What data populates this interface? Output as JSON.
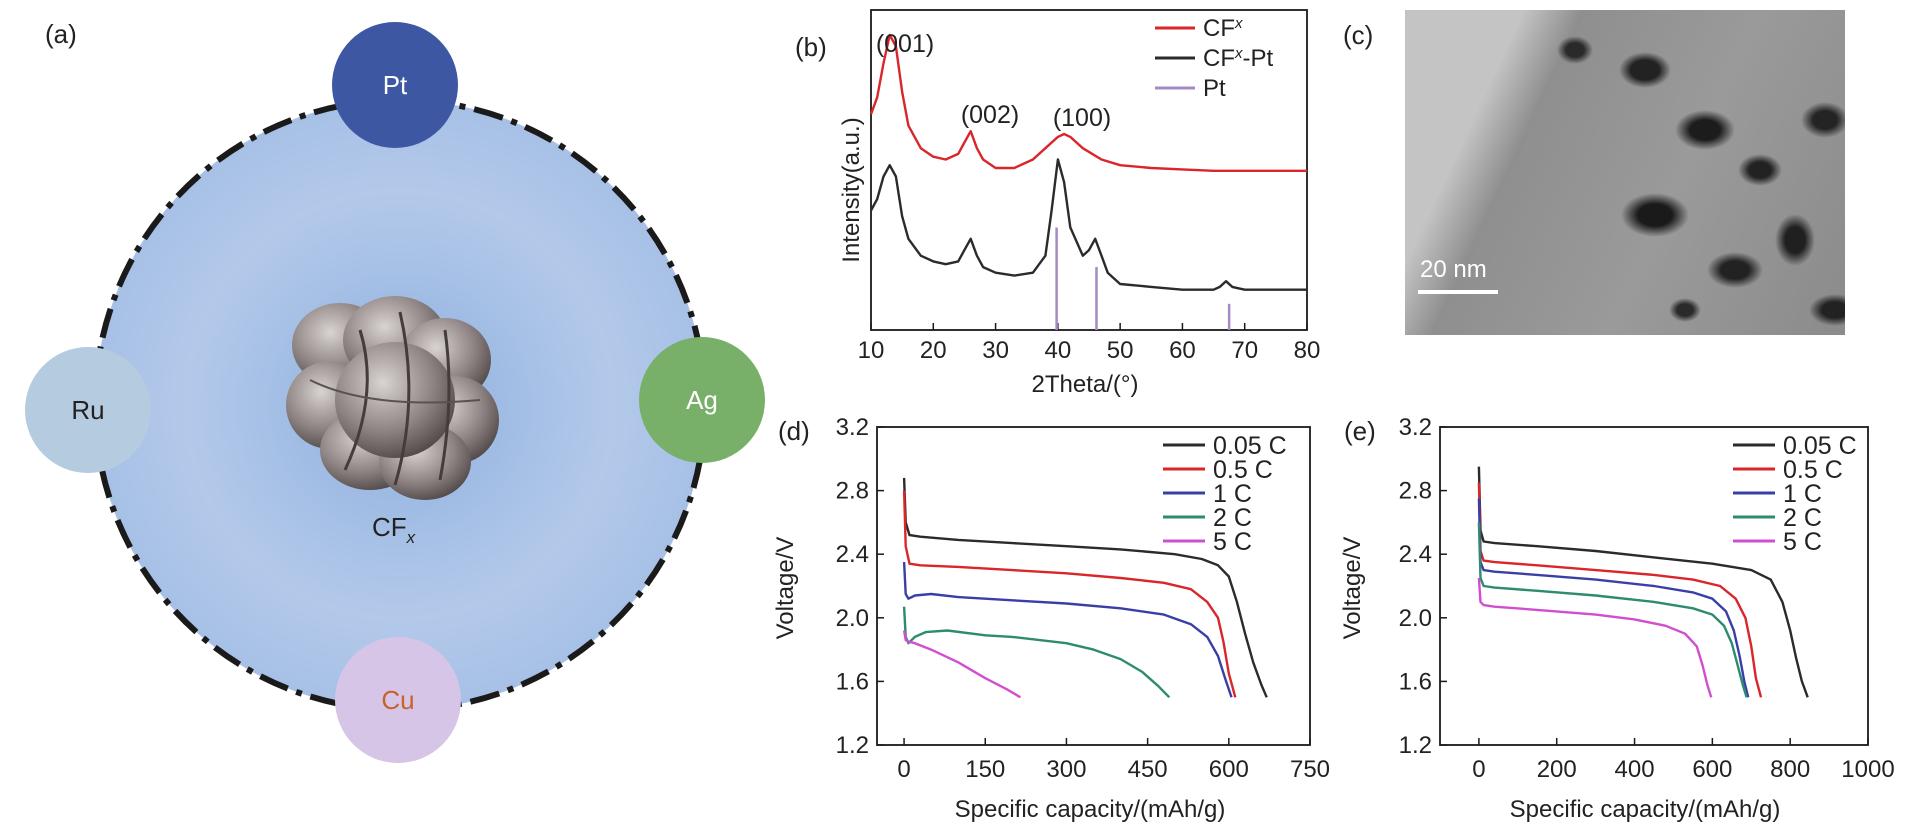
{
  "panel_a": {
    "label": "(a)",
    "center_label": "CF",
    "center_sub": "x",
    "metals": [
      {
        "name": "Pt",
        "fill": "#3d57a3",
        "text_color": "#ffffff"
      },
      {
        "name": "Ag",
        "fill": "#78b06a",
        "text_color": "#ffffff"
      },
      {
        "name": "Cu",
        "fill": "#d6c5e6",
        "text_color": "#c8622b"
      },
      {
        "name": "Ru",
        "fill": "#b5cbe0",
        "text_color": "#222222"
      }
    ],
    "circle_fill": "#a9c2e6"
  },
  "panel_c": {
    "label": "(c)",
    "scale_bar": "20 nm"
  },
  "chart_data": [
    {
      "panel_label": "(b)",
      "type": "line",
      "xlabel": "2Theta/(°)",
      "ylabel": "Intensity(a.u.)",
      "xlim": [
        10,
        80
      ],
      "xticks": [
        10,
        20,
        30,
        40,
        50,
        60,
        70,
        80
      ],
      "yticks_shown": false,
      "legend_position": "top-right",
      "annotations": [
        "(001)",
        "(002)",
        "(100)"
      ],
      "series": [
        {
          "name": "CFx",
          "name_base": "CF",
          "name_sub": "x",
          "name_tail": "",
          "color": "#d9262b",
          "x": [
            10,
            11,
            12,
            13,
            14,
            15,
            16,
            18,
            20,
            22,
            24,
            25,
            26,
            27,
            28,
            30,
            33,
            36,
            38,
            40,
            41,
            42,
            44,
            47,
            50,
            55,
            60,
            65,
            70,
            75,
            80
          ],
          "y": [
            0.72,
            0.78,
            0.9,
            1.0,
            0.96,
            0.8,
            0.68,
            0.6,
            0.57,
            0.56,
            0.58,
            0.62,
            0.66,
            0.6,
            0.56,
            0.53,
            0.53,
            0.56,
            0.6,
            0.64,
            0.65,
            0.64,
            0.6,
            0.56,
            0.54,
            0.53,
            0.525,
            0.52,
            0.52,
            0.52,
            0.52
          ]
        },
        {
          "name": "CFx-Pt",
          "name_base": "CF",
          "name_sub": "x",
          "name_tail": "-Pt",
          "color": "#2b2b2b",
          "x": [
            10,
            11,
            12,
            13,
            14,
            15,
            16,
            18,
            20,
            22,
            24,
            25,
            26,
            27,
            28,
            30,
            33,
            36,
            38,
            39,
            40,
            41,
            42,
            44,
            45,
            46,
            47,
            48,
            50,
            55,
            60,
            65,
            66,
            67,
            68,
            70,
            75,
            80
          ],
          "y": [
            0.38,
            0.42,
            0.5,
            0.54,
            0.5,
            0.36,
            0.28,
            0.22,
            0.2,
            0.19,
            0.2,
            0.24,
            0.28,
            0.22,
            0.18,
            0.16,
            0.15,
            0.16,
            0.22,
            0.38,
            0.56,
            0.48,
            0.32,
            0.22,
            0.24,
            0.28,
            0.22,
            0.16,
            0.12,
            0.11,
            0.1,
            0.1,
            0.11,
            0.13,
            0.11,
            0.1,
            0.1,
            0.1
          ]
        },
        {
          "name": "Pt",
          "name_base": "Pt",
          "name_sub": "",
          "name_tail": "",
          "color": "#a58bc4",
          "type": "stick",
          "x": [
            39.8,
            46.2,
            67.5
          ],
          "y": [
            0.32,
            0.18,
            0.05
          ]
        }
      ]
    },
    {
      "panel_label": "(d)",
      "type": "line",
      "xlabel": "Specific capacity/(mAh/g)",
      "ylabel": "Voltage/V",
      "xlim": [
        -50,
        750
      ],
      "ylim": [
        1.2,
        3.2
      ],
      "xticks": [
        0,
        150,
        300,
        450,
        600,
        750
      ],
      "yticks": [
        1.2,
        1.6,
        2.0,
        2.4,
        2.8,
        3.2
      ],
      "legend_position": "top-right",
      "series": [
        {
          "name": "0.05 C",
          "color": "#2b2b2b",
          "x": [
            0,
            3,
            10,
            30,
            100,
            200,
            300,
            400,
            500,
            550,
            580,
            600,
            615,
            630,
            645,
            660,
            670
          ],
          "y": [
            2.88,
            2.6,
            2.52,
            2.51,
            2.49,
            2.47,
            2.45,
            2.43,
            2.4,
            2.37,
            2.33,
            2.26,
            2.1,
            1.9,
            1.72,
            1.58,
            1.5
          ]
        },
        {
          "name": "0.5 C",
          "color": "#d9262b",
          "x": [
            0,
            3,
            10,
            30,
            100,
            200,
            300,
            400,
            480,
            530,
            560,
            580,
            590,
            600,
            612
          ],
          "y": [
            2.8,
            2.45,
            2.34,
            2.33,
            2.32,
            2.3,
            2.28,
            2.25,
            2.22,
            2.18,
            2.1,
            2.0,
            1.85,
            1.65,
            1.5
          ]
        },
        {
          "name": "1 C",
          "color": "#3a3fa8",
          "x": [
            0,
            3,
            8,
            20,
            50,
            100,
            200,
            300,
            400,
            480,
            530,
            560,
            580,
            595,
            605
          ],
          "y": [
            2.35,
            2.15,
            2.12,
            2.14,
            2.15,
            2.13,
            2.11,
            2.09,
            2.06,
            2.02,
            1.96,
            1.88,
            1.76,
            1.6,
            1.5
          ]
        },
        {
          "name": "2 C",
          "color": "#2e8b6f",
          "x": [
            0,
            3,
            8,
            20,
            40,
            80,
            150,
            200,
            300,
            350,
            400,
            440,
            470,
            490
          ],
          "y": [
            2.07,
            1.88,
            1.84,
            1.88,
            1.91,
            1.92,
            1.89,
            1.88,
            1.84,
            1.8,
            1.74,
            1.66,
            1.57,
            1.5
          ]
        },
        {
          "name": "5 C",
          "color": "#d14fcf",
          "x": [
            0,
            3,
            8,
            20,
            50,
            100,
            150,
            190,
            215
          ],
          "y": [
            1.92,
            1.86,
            1.85,
            1.84,
            1.8,
            1.72,
            1.62,
            1.55,
            1.5
          ]
        }
      ]
    },
    {
      "panel_label": "(e)",
      "type": "line",
      "xlabel": "Specific capacity/(mAh/g)",
      "ylabel": "Voltage/V",
      "xlim": [
        -100,
        1000
      ],
      "ylim": [
        1.2,
        3.2
      ],
      "xticks": [
        0,
        200,
        400,
        600,
        800,
        1000
      ],
      "yticks": [
        1.2,
        1.6,
        2.0,
        2.4,
        2.8,
        3.2
      ],
      "legend_position": "top-right",
      "series": [
        {
          "name": "0.05 C",
          "color": "#2b2b2b",
          "x": [
            0,
            4,
            12,
            40,
            150,
            300,
            450,
            600,
            700,
            750,
            780,
            800,
            815,
            830,
            845
          ],
          "y": [
            2.95,
            2.55,
            2.48,
            2.47,
            2.45,
            2.42,
            2.38,
            2.34,
            2.3,
            2.24,
            2.1,
            1.92,
            1.75,
            1.6,
            1.5
          ]
        },
        {
          "name": "0.5 C",
          "color": "#d9262b",
          "x": [
            0,
            4,
            12,
            40,
            150,
            300,
            450,
            550,
            620,
            660,
            685,
            700,
            712,
            725
          ],
          "y": [
            2.85,
            2.42,
            2.36,
            2.35,
            2.33,
            2.3,
            2.27,
            2.24,
            2.2,
            2.12,
            2.0,
            1.82,
            1.62,
            1.5
          ]
        },
        {
          "name": "1 C",
          "color": "#3a3fa8",
          "x": [
            0,
            4,
            12,
            40,
            150,
            300,
            450,
            550,
            600,
            635,
            655,
            670,
            682,
            692
          ],
          "y": [
            2.75,
            2.35,
            2.3,
            2.29,
            2.27,
            2.24,
            2.2,
            2.16,
            2.12,
            2.04,
            1.92,
            1.76,
            1.6,
            1.5
          ]
        },
        {
          "name": "2 C",
          "color": "#2e8b6f",
          "x": [
            0,
            4,
            12,
            40,
            150,
            300,
            450,
            550,
            600,
            630,
            650,
            665,
            678,
            688
          ],
          "y": [
            2.6,
            2.25,
            2.2,
            2.19,
            2.17,
            2.14,
            2.1,
            2.06,
            2.02,
            1.95,
            1.84,
            1.7,
            1.58,
            1.5
          ]
        },
        {
          "name": "5 C",
          "color": "#d14fcf",
          "x": [
            0,
            4,
            12,
            40,
            150,
            300,
            400,
            480,
            530,
            560,
            575,
            587,
            597
          ],
          "y": [
            2.25,
            2.1,
            2.08,
            2.07,
            2.05,
            2.02,
            1.99,
            1.95,
            1.9,
            1.82,
            1.7,
            1.58,
            1.5
          ]
        }
      ]
    }
  ]
}
